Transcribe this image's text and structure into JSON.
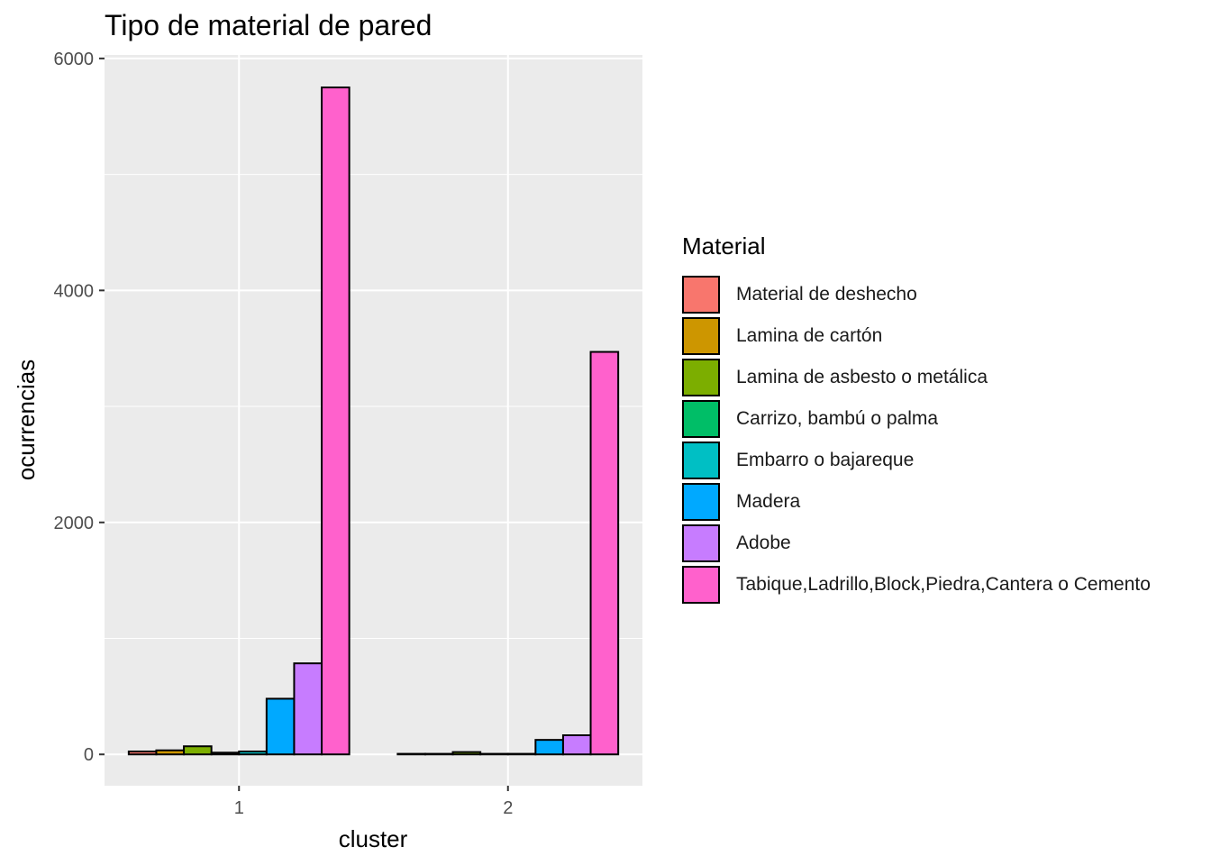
{
  "chart_data": {
    "type": "bar",
    "title": "Tipo de material de pared",
    "xlabel": "cluster",
    "ylabel": "ocurrencias",
    "categories": [
      "1",
      "2"
    ],
    "ylim": [
      -270,
      6030
    ],
    "yticks": [
      0,
      2000,
      4000,
      6000
    ],
    "grid": true,
    "legend_title": "Material",
    "legend_position": "right",
    "series": [
      {
        "name": "Material de deshecho",
        "color": "#F8766D",
        "values": [
          25,
          5
        ]
      },
      {
        "name": "Lamina de cartón",
        "color": "#CD9600",
        "values": [
          35,
          5
        ]
      },
      {
        "name": "Lamina de asbesto o metálica",
        "color": "#7CAE00",
        "values": [
          70,
          20
        ]
      },
      {
        "name": "Carrizo, bambú o palma",
        "color": "#00BE67",
        "values": [
          15,
          5
        ]
      },
      {
        "name": "Embarro o bajareque",
        "color": "#00BFC4",
        "values": [
          25,
          5
        ]
      },
      {
        "name": "Madera",
        "color": "#00A9FF",
        "values": [
          480,
          125
        ]
      },
      {
        "name": "Adobe",
        "color": "#C77CFF",
        "values": [
          785,
          165
        ]
      },
      {
        "name": "Tabique,Ladrillo,Block,Piedra,Cantera o Cemento",
        "color": "#FF61CC",
        "values": [
          5750,
          3470
        ]
      }
    ]
  }
}
